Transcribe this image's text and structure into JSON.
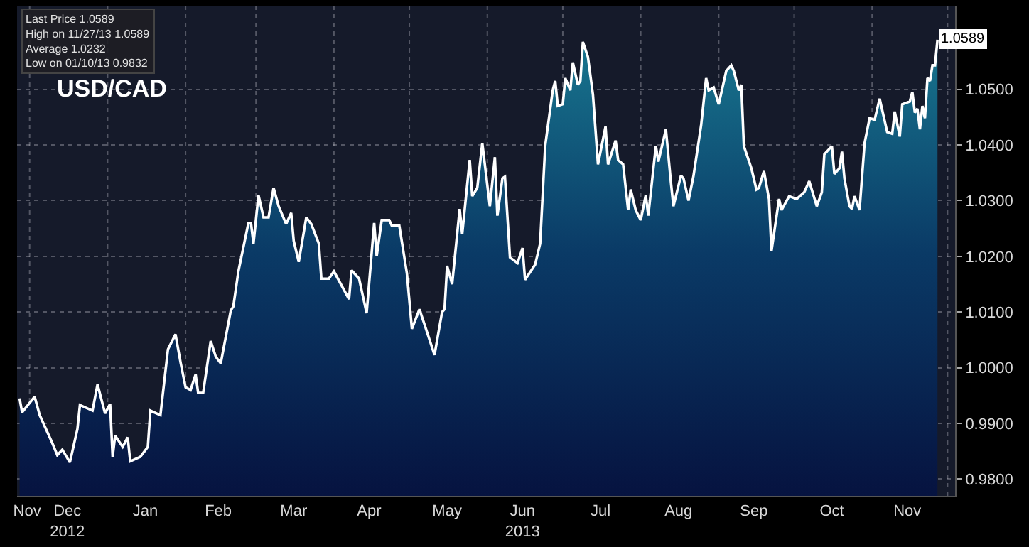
{
  "chart_data": {
    "type": "area",
    "title": "USD/CAD",
    "x": [
      "2012-11-27",
      "2012-11-28",
      "2012-12-03",
      "2012-12-05",
      "2012-12-10",
      "2012-12-12",
      "2012-12-14",
      "2012-12-17",
      "2012-12-20",
      "2012-12-21",
      "2012-12-26",
      "2012-12-28",
      "2012-12-31",
      "2013-01-02",
      "2013-01-03",
      "2013-01-04",
      "2013-01-07",
      "2013-01-09",
      "2013-01-10",
      "2013-01-14",
      "2013-01-17",
      "2013-01-18",
      "2013-01-22",
      "2013-01-25",
      "2013-01-28",
      "2013-01-30",
      "2013-02-01",
      "2013-02-03",
      "2013-02-05",
      "2013-02-06",
      "2013-02-08",
      "2013-02-11",
      "2013-02-13",
      "2013-02-15",
      "2013-02-19",
      "2013-02-20",
      "2013-02-22",
      "2013-02-26",
      "2013-02-27",
      "2013-02-28",
      "2013-03-02",
      "2013-03-04",
      "2013-03-06",
      "2013-03-08",
      "2013-03-10",
      "2013-03-13",
      "2013-03-15",
      "2013-03-16",
      "2013-03-18",
      "2013-03-21",
      "2013-03-23",
      "2013-03-26",
      "2013-03-27",
      "2013-03-30",
      "2013-04-01",
      "2013-04-04",
      "2013-04-07",
      "2013-04-08",
      "2013-04-11",
      "2013-04-14",
      "2013-04-17",
      "2013-04-18",
      "2013-04-20",
      "2013-04-23",
      "2013-04-24",
      "2013-04-27",
      "2013-04-30",
      "2013-05-02",
      "2013-05-05",
      "2013-05-07",
      "2013-05-11",
      "2013-05-14",
      "2013-05-15",
      "2013-05-16",
      "2013-05-18",
      "2013-05-21",
      "2013-05-22",
      "2013-05-25",
      "2013-05-26",
      "2013-05-28",
      "2013-05-30",
      "2013-06-02",
      "2013-06-04",
      "2013-06-05",
      "2013-06-07",
      "2013-06-08",
      "2013-06-10",
      "2013-06-13",
      "2013-06-15",
      "2013-06-16",
      "2013-06-20",
      "2013-06-22",
      "2013-06-24",
      "2013-06-27",
      "2013-06-28",
      "2013-06-29",
      "2013-07-01",
      "2013-07-02",
      "2013-07-04",
      "2013-07-05",
      "2013-07-07",
      "2013-07-08",
      "2013-07-09",
      "2013-07-11",
      "2013-07-13",
      "2013-07-15",
      "2013-07-18",
      "2013-07-19",
      "2013-07-22",
      "2013-07-23",
      "2013-07-25",
      "2013-07-27",
      "2013-07-28",
      "2013-07-30",
      "2013-08-01",
      "2013-08-03",
      "2013-08-04",
      "2013-08-07",
      "2013-08-08",
      "2013-08-11",
      "2013-08-13",
      "2013-08-14",
      "2013-08-17",
      "2013-08-18",
      "2013-08-20",
      "2013-08-22",
      "2013-08-25",
      "2013-08-27",
      "2013-08-28",
      "2013-08-30",
      "2013-09-01",
      "2013-09-04",
      "2013-09-06",
      "2013-09-07",
      "2013-09-09",
      "2013-09-10",
      "2013-09-11",
      "2013-09-14",
      "2013-09-16",
      "2013-09-17",
      "2013-09-19",
      "2013-09-21",
      "2013-09-22",
      "2013-09-25",
      "2013-09-26",
      "2013-09-29",
      "2013-10-02",
      "2013-10-05",
      "2013-10-07",
      "2013-10-10",
      "2013-10-12",
      "2013-10-13",
      "2013-10-16",
      "2013-10-17",
      "2013-10-19",
      "2013-10-20",
      "2013-10-21",
      "2013-10-23",
      "2013-10-24",
      "2013-10-25",
      "2013-10-27",
      "2013-10-29",
      "2013-10-31",
      "2013-11-02",
      "2013-11-04",
      "2013-11-07",
      "2013-11-09",
      "2013-11-10",
      "2013-11-12",
      "2013-11-13",
      "2013-11-16",
      "2013-11-17",
      "2013-11-18",
      "2013-11-19",
      "2013-11-20",
      "2013-11-21",
      "2013-11-22",
      "2013-11-23",
      "2013-11-24",
      "2013-11-25",
      "2013-11-26",
      "2013-11-27"
    ],
    "series": [
      {
        "color": "#ffffff",
        "values": [
          0.9945,
          0.992,
          0.9948,
          0.9915,
          0.9865,
          0.9843,
          0.9853,
          0.983,
          0.989,
          0.9933,
          0.9923,
          0.997,
          0.9918,
          0.9935,
          0.984,
          0.9878,
          0.9858,
          0.9875,
          0.9832,
          0.984,
          0.9858,
          0.9923,
          0.9915,
          1.0033,
          1.006,
          1.001,
          0.9965,
          0.996,
          0.9988,
          0.9955,
          0.9955,
          1.0048,
          1.002,
          1.0008,
          1.0103,
          1.011,
          1.0173,
          1.026,
          1.026,
          1.0223,
          1.031,
          1.027,
          1.027,
          1.0323,
          1.029,
          1.0258,
          1.0278,
          1.0228,
          1.019,
          1.027,
          1.0258,
          1.0223,
          1.016,
          1.016,
          1.0173,
          1.0148,
          1.0123,
          1.0175,
          1.016,
          1.0098,
          1.026,
          1.02,
          1.0265,
          1.0265,
          1.0255,
          1.0255,
          1.017,
          1.007,
          1.0105,
          1.0078,
          1.0023,
          1.01,
          1.0105,
          1.0183,
          1.015,
          1.0285,
          1.024,
          1.0373,
          1.0308,
          1.0323,
          1.0403,
          1.029,
          1.0378,
          1.0273,
          1.034,
          1.0343,
          1.0198,
          1.0188,
          1.0215,
          1.0158,
          1.0185,
          1.0223,
          1.0398,
          1.0498,
          1.0515,
          1.047,
          1.0473,
          1.052,
          1.0498,
          1.0548,
          1.0508,
          1.0515,
          1.0585,
          1.0558,
          1.049,
          1.0365,
          1.0433,
          1.0365,
          1.0408,
          1.0373,
          1.0365,
          1.0283,
          1.032,
          1.0283,
          1.0265,
          1.031,
          1.0273,
          1.0398,
          1.037,
          1.0428,
          1.0333,
          1.029,
          1.0345,
          1.034,
          1.03,
          1.0345,
          1.0435,
          1.052,
          1.0498,
          1.0503,
          1.0473,
          1.0533,
          1.0543,
          1.0533,
          1.0498,
          1.0508,
          1.0398,
          1.0358,
          1.032,
          1.0323,
          1.0353,
          1.0303,
          1.021,
          1.0303,
          1.0283,
          1.0308,
          1.0303,
          1.0315,
          1.0335,
          1.029,
          1.0315,
          1.0383,
          1.0398,
          1.0348,
          1.0358,
          1.0388,
          1.034,
          1.029,
          1.0285,
          1.0308,
          1.0283,
          1.0403,
          1.0448,
          1.0445,
          1.0483,
          1.0423,
          1.042,
          1.046,
          1.0415,
          1.0473,
          1.0478,
          1.0495,
          1.0458,
          1.0465,
          1.0428,
          1.047,
          1.0448,
          1.052,
          1.0515,
          1.0543,
          1.0543,
          1.0589
        ]
      }
    ],
    "xlim": [
      "2012-11-26",
      "2013-12-04"
    ],
    "xticks": [
      {
        "value": "2012-11-30",
        "label": "Nov"
      },
      {
        "value": "2012-12-16",
        "label": "Dec\n2012"
      },
      {
        "value": "2013-01-16",
        "label": "Jan"
      },
      {
        "value": "2013-02-14",
        "label": "Feb"
      },
      {
        "value": "2013-03-16",
        "label": "Mar"
      },
      {
        "value": "2013-04-15",
        "label": "Apr"
      },
      {
        "value": "2013-05-16",
        "label": "May"
      },
      {
        "value": "2013-06-15",
        "label": "Jun\n2013"
      },
      {
        "value": "2013-07-16",
        "label": "Jul"
      },
      {
        "value": "2013-08-16",
        "label": "Aug"
      },
      {
        "value": "2013-09-15",
        "label": "Sep"
      },
      {
        "value": "2013-10-16",
        "label": "Oct"
      },
      {
        "value": "2013-11-15",
        "label": "Nov"
      },
      {
        "value": "2012-12-01",
        "label": null
      },
      {
        "value": "2013-01-01",
        "label": null
      },
      {
        "value": "2013-02-01",
        "label": null
      },
      {
        "value": "2013-03-01",
        "label": null
      },
      {
        "value": "2013-04-01",
        "label": null
      },
      {
        "value": "2013-05-01",
        "label": null
      },
      {
        "value": "2013-06-01",
        "label": null
      },
      {
        "value": "2013-07-01",
        "label": null
      },
      {
        "value": "2013-08-01",
        "label": null
      },
      {
        "value": "2013-09-01",
        "label": null
      },
      {
        "value": "2013-10-01",
        "label": null
      },
      {
        "value": "2013-11-01",
        "label": null
      },
      {
        "value": "2013-12-01",
        "label": null
      }
    ],
    "ylim": [
      0.977,
      1.065
    ],
    "yticks": [
      {
        "value": 0.98,
        "label": "0.9800"
      },
      {
        "value": 0.99,
        "label": "0.9900"
      },
      {
        "value": 1.0,
        "label": "1.0000"
      },
      {
        "value": 1.01,
        "label": "1.0100"
      },
      {
        "value": 1.02,
        "label": "1.0200"
      },
      {
        "value": 1.03,
        "label": "1.0300"
      },
      {
        "value": 1.04,
        "label": "1.0400"
      },
      {
        "value": 1.05,
        "label": "1.0500"
      }
    ],
    "grid": true,
    "annotations": [
      "Last Price 1.0589",
      "High on 11/27/13 1.0589",
      "Average 1.0232",
      "Low on 01/10/13 0.9832",
      {
        "text": "1.0589",
        "x": "2013-11-27",
        "y": 1.0589
      }
    ]
  }
}
